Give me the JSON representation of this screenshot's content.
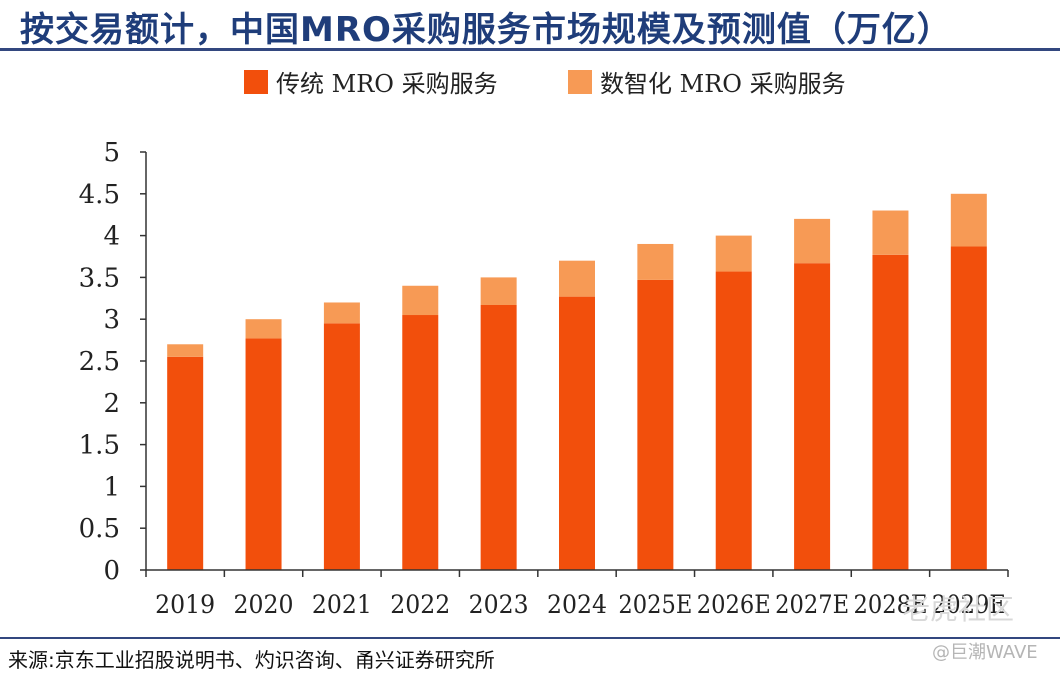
{
  "page": {
    "title": "按交易额计，中国MRO采购服务市场规模及预测值（万亿）",
    "source": "来源:京东工业招股说明书、灼识咨询、甬兴证券研究所",
    "watermark": "@巨潮WAVE",
    "watermark_faint": "老虎社区"
  },
  "colors": {
    "traditional": "#f24f0c",
    "digital": "#f79a55",
    "title": "#1f3d7a",
    "axis": "#333333"
  },
  "chart_data": {
    "type": "bar",
    "stacked": true,
    "categories": [
      "2019",
      "2020",
      "2021",
      "2022",
      "2023",
      "2024",
      "2025E",
      "2026E",
      "2027E",
      "2028E",
      "2029E"
    ],
    "series": [
      {
        "name": "传统 MRO 采购服务",
        "values": [
          2.55,
          2.77,
          2.95,
          3.05,
          3.17,
          3.27,
          3.47,
          3.57,
          3.67,
          3.77,
          3.87
        ]
      },
      {
        "name": "数智化 MRO 采购服务",
        "values": [
          0.15,
          0.23,
          0.25,
          0.35,
          0.33,
          0.43,
          0.43,
          0.43,
          0.53,
          0.53,
          0.63
        ]
      }
    ],
    "title": "",
    "xlabel": "",
    "ylabel": "",
    "ylim": [
      0,
      5
    ],
    "yticks": [
      "0",
      "0.5",
      "1",
      "1.5",
      "2",
      "2.5",
      "3",
      "3.5",
      "4",
      "4.5",
      "5"
    ],
    "grid": false,
    "legend_position": "top"
  }
}
